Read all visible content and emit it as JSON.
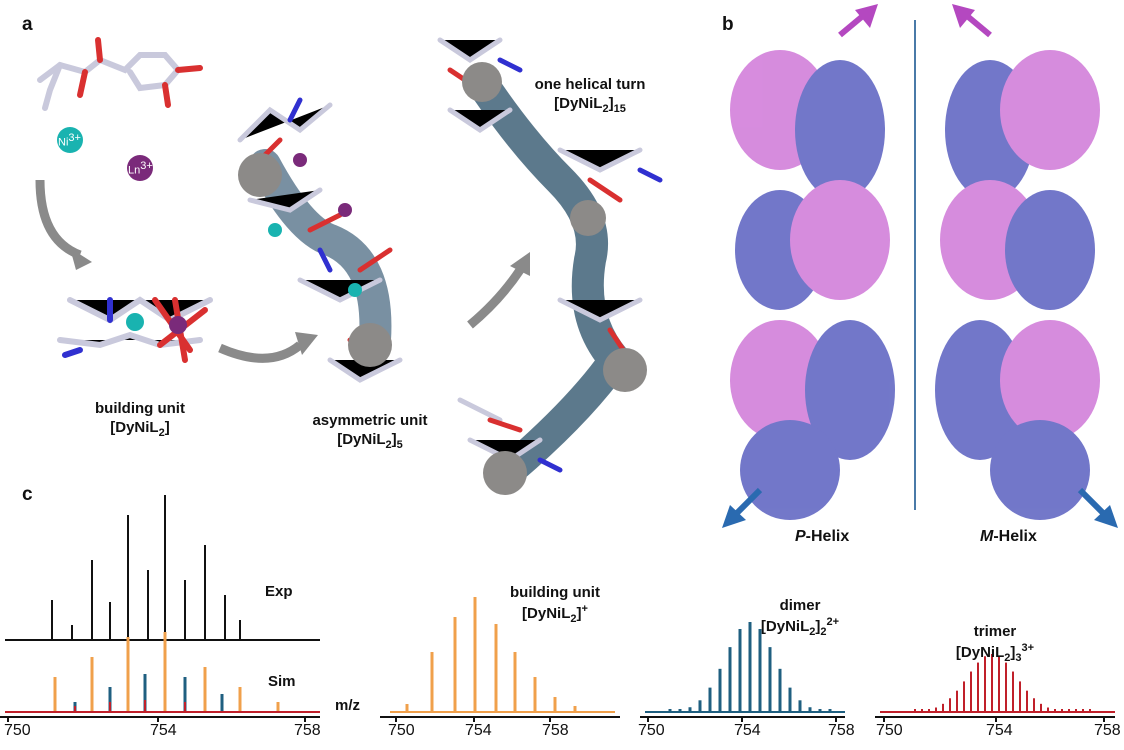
{
  "panels": {
    "a": "a",
    "b": "b",
    "c": "c"
  },
  "ions": {
    "ni": "Ni",
    "ni_charge": "3+",
    "ln": "Ln",
    "ln_charge": "3+"
  },
  "structures": {
    "building_unit": {
      "line1": "building unit",
      "formula_main": "[DyNiL",
      "formula_sub": "2",
      "formula_end": "]"
    },
    "asymmetric_unit": {
      "line1": "asymmetric unit",
      "formula_main": "[DyNiL",
      "formula_sub": "2",
      "formula_end": "]",
      "formula_sub2": "5"
    },
    "helical_turn": {
      "line1": "one helical turn",
      "formula_main": "[DyNiL",
      "formula_sub": "2",
      "formula_end": "]",
      "formula_sub2": "15"
    }
  },
  "helices": {
    "p": "P",
    "m": "M",
    "suffix": "-Helix"
  },
  "spectra": {
    "exp_label": "Exp",
    "sim_label": "Sim",
    "mz_label": "m/z",
    "building_unit": {
      "line1": "building unit",
      "formula_main": "[DyNiL",
      "formula_sub": "2",
      "formula_end": "]",
      "charge": "+"
    },
    "dimer": {
      "line1": "dimer",
      "formula_main": "[DyNiL",
      "formula_sub": "2",
      "formula_end": "]",
      "formula_sub2": "2",
      "charge": "2+"
    },
    "trimer": {
      "line1": "trimer",
      "formula_main": "[DyNiL",
      "formula_sub": "2",
      "formula_end": "]",
      "formula_sub2": "3",
      "charge": "3+"
    },
    "ticks": [
      "750",
      "754",
      "758"
    ]
  },
  "colors": {
    "exp": "#111111",
    "orange": "#f0a04b",
    "teal": "#1f5f80",
    "red": "#c0202a",
    "pink": "#c064c8",
    "blue": "#5a60c0",
    "arrow": "#888888",
    "ni": "#19b3b0",
    "ln": "#7a2a7a"
  }
}
